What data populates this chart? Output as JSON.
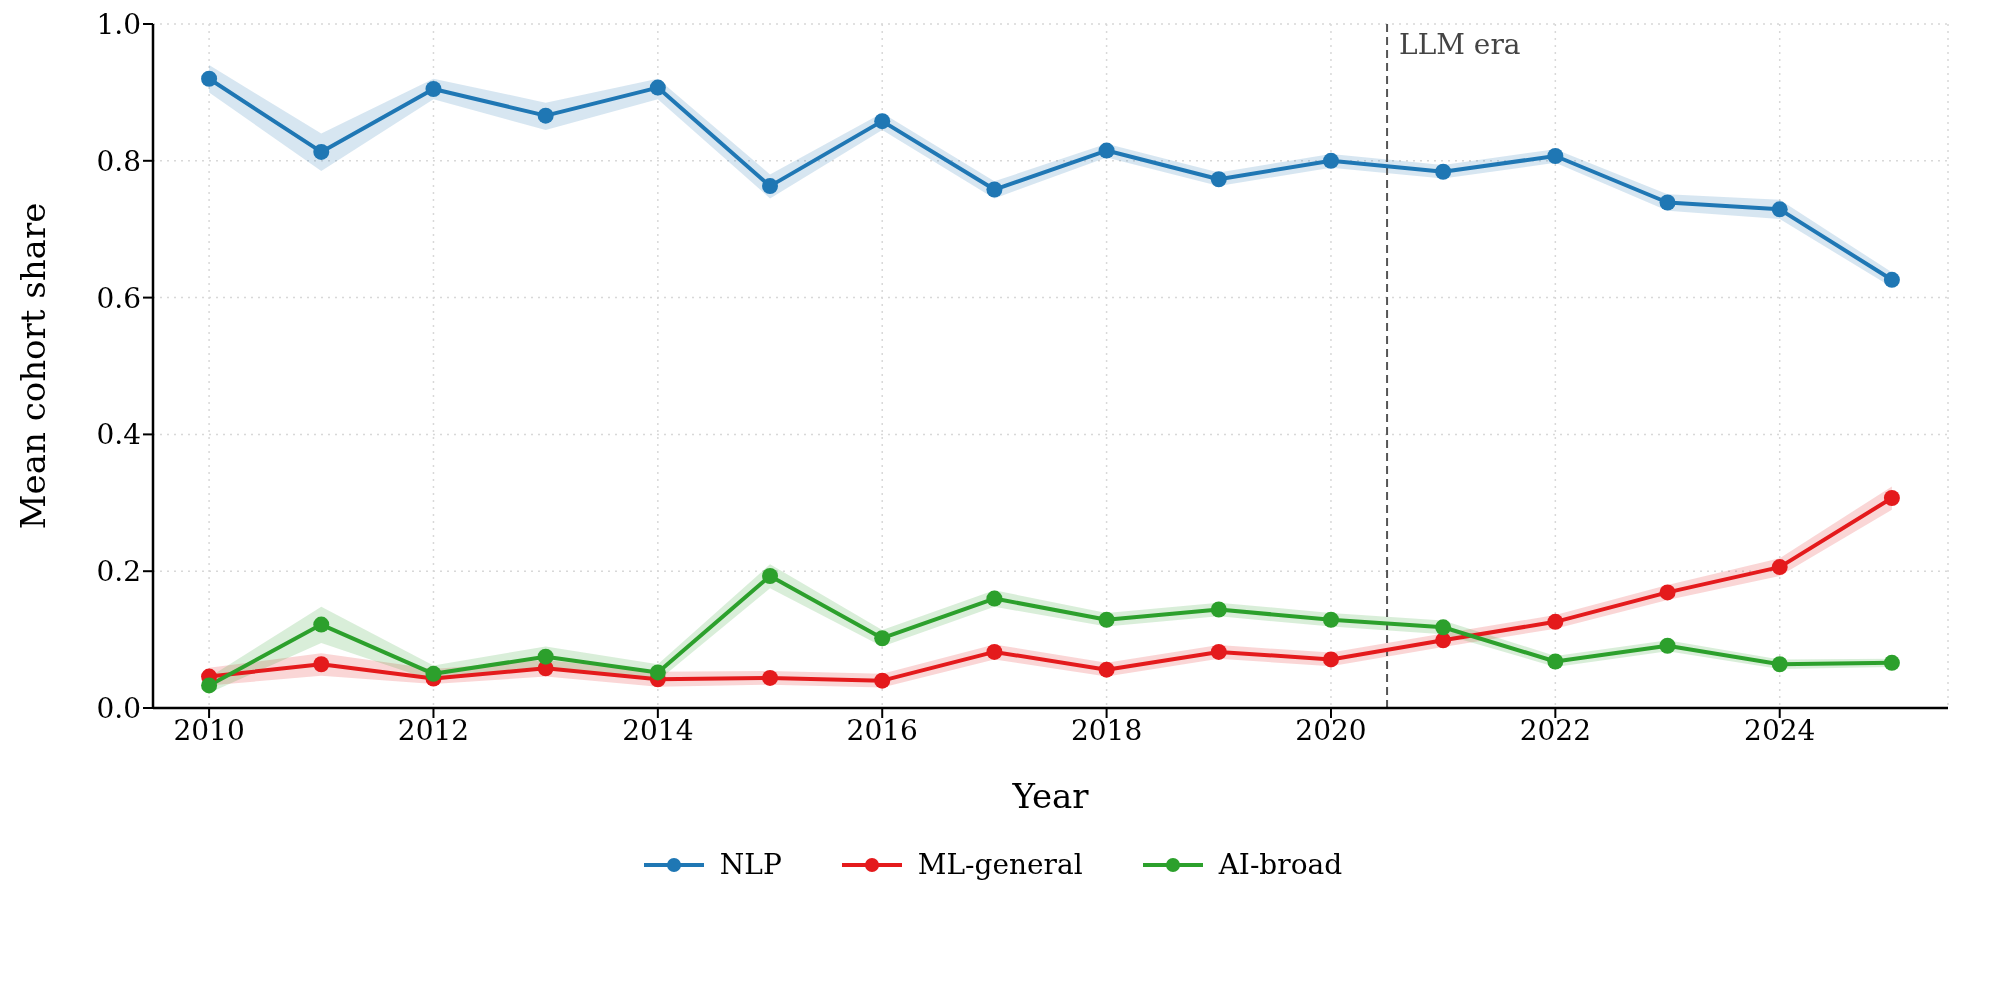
{
  "chart_data": {
    "type": "line",
    "xlabel": "Year",
    "ylabel": "Mean cohort share",
    "x": [
      2010,
      2011,
      2012,
      2013,
      2014,
      2015,
      2016,
      2017,
      2018,
      2019,
      2020,
      2021,
      2022,
      2023,
      2024,
      2025
    ],
    "series": [
      {
        "name": "NLP",
        "color": "#1f77b4",
        "values": [
          0.92,
          0.813,
          0.905,
          0.866,
          0.907,
          0.763,
          0.858,
          0.758,
          0.815,
          0.773,
          0.8,
          0.784,
          0.807,
          0.739,
          0.729,
          0.626
        ],
        "lower": [
          0.9,
          0.785,
          0.89,
          0.845,
          0.89,
          0.745,
          0.845,
          0.745,
          0.805,
          0.763,
          0.79,
          0.774,
          0.797,
          0.727,
          0.715,
          0.615
        ],
        "upper": [
          0.94,
          0.84,
          0.92,
          0.885,
          0.92,
          0.78,
          0.87,
          0.77,
          0.825,
          0.783,
          0.81,
          0.794,
          0.817,
          0.751,
          0.743,
          0.637
        ]
      },
      {
        "name": "ML-general",
        "color": "#e41a1c",
        "values": [
          0.046,
          0.064,
          0.043,
          0.058,
          0.042,
          0.044,
          0.04,
          0.082,
          0.056,
          0.082,
          0.071,
          0.099,
          0.126,
          0.169,
          0.206,
          0.307
        ],
        "lower": [
          0.033,
          0.047,
          0.035,
          0.046,
          0.031,
          0.034,
          0.03,
          0.071,
          0.046,
          0.072,
          0.061,
          0.089,
          0.116,
          0.158,
          0.193,
          0.29
        ],
        "upper": [
          0.059,
          0.08,
          0.057,
          0.07,
          0.053,
          0.054,
          0.05,
          0.093,
          0.066,
          0.092,
          0.081,
          0.109,
          0.136,
          0.18,
          0.219,
          0.324
        ]
      },
      {
        "name": "AI-broad",
        "color": "#2ca02c",
        "values": [
          0.033,
          0.122,
          0.05,
          0.075,
          0.052,
          0.193,
          0.102,
          0.16,
          0.129,
          0.144,
          0.129,
          0.118,
          0.068,
          0.091,
          0.064,
          0.066
        ],
        "lower": [
          0.022,
          0.095,
          0.04,
          0.06,
          0.04,
          0.175,
          0.09,
          0.148,
          0.119,
          0.134,
          0.119,
          0.108,
          0.06,
          0.083,
          0.057,
          0.06
        ],
        "upper": [
          0.045,
          0.148,
          0.062,
          0.09,
          0.064,
          0.21,
          0.114,
          0.172,
          0.139,
          0.154,
          0.139,
          0.128,
          0.076,
          0.099,
          0.071,
          0.072
        ]
      }
    ],
    "xlim": [
      2009.5,
      2025.5
    ],
    "xticks": [
      2010,
      2012,
      2014,
      2016,
      2018,
      2020,
      2022,
      2024
    ],
    "ylim": [
      0,
      1
    ],
    "yticks": [
      {
        "value": 0,
        "label": "0.0"
      },
      {
        "value": 0.2,
        "label": "0.2"
      },
      {
        "value": 0.4,
        "label": "0.4"
      },
      {
        "value": 0.6,
        "label": "0.6"
      },
      {
        "value": 0.8,
        "label": "0.8"
      },
      {
        "value": 1,
        "label": "1.0"
      }
    ],
    "ref_lines": [
      {
        "axis": "x",
        "value": 2020.5,
        "label": "LLM era",
        "color": "#555555",
        "line_style": "dashed"
      }
    ],
    "grid": true,
    "legend": "bottom",
    "marker": "circle",
    "line_style": "solid"
  }
}
